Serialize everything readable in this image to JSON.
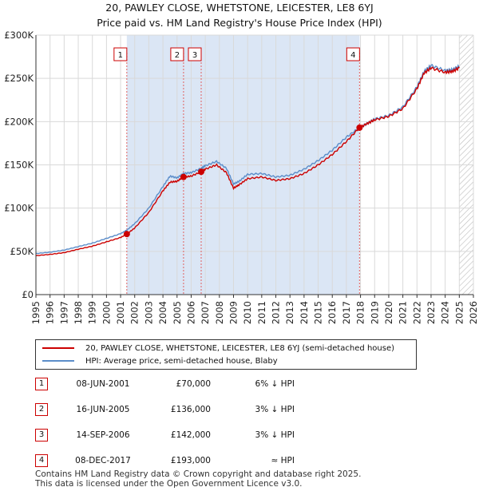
{
  "header": {
    "title_line1": "20, PAWLEY CLOSE, WHETSTONE, LEICESTER, LE8 6YJ",
    "title_line2": "Price paid vs. HM Land Registry's House Price Index (HPI)"
  },
  "colors": {
    "price_line": "#cc0000",
    "hpi_line": "#5b8dc9",
    "shade": "#dbe6f5",
    "marker_box": "#cc0000"
  },
  "chart_data": {
    "type": "line",
    "title": "Price paid vs. HM Land Registry's House Price Index (HPI)",
    "xlabel": "",
    "ylabel": "",
    "xlim": [
      1995,
      2026
    ],
    "ylim": [
      0,
      300000
    ],
    "y_ticks": [
      {
        "value": 0,
        "label": "£0"
      },
      {
        "value": 50000,
        "label": "£50K"
      },
      {
        "value": 100000,
        "label": "£100K"
      },
      {
        "value": 150000,
        "label": "£150K"
      },
      {
        "value": 200000,
        "label": "£200K"
      },
      {
        "value": 250000,
        "label": "£250K"
      },
      {
        "value": 300000,
        "label": "£300K"
      }
    ],
    "x_ticks": [
      "1995",
      "1996",
      "1997",
      "1998",
      "1999",
      "2000",
      "2001",
      "2002",
      "2003",
      "2004",
      "2005",
      "2006",
      "2007",
      "2008",
      "2009",
      "2010",
      "2011",
      "2012",
      "2013",
      "2014",
      "2015",
      "2016",
      "2017",
      "2018",
      "2019",
      "2020",
      "2021",
      "2022",
      "2023",
      "2024",
      "2025",
      "2026"
    ],
    "grid": true,
    "shaded_ranges": [
      [
        2001.44,
        2017.93
      ]
    ],
    "hatched_from": 2025.0,
    "series": [
      {
        "name": "20, PAWLEY CLOSE, WHETSTONE, LEICESTER, LE8 6YJ (semi-detached house)",
        "x": [
          1995.0,
          1996.0,
          1997.0,
          1998.0,
          1999.0,
          2000.0,
          2001.0,
          2001.44,
          2002.0,
          2003.0,
          2004.0,
          2004.5,
          2005.0,
          2005.46,
          2006.0,
          2006.71,
          2007.0,
          2007.8,
          2008.5,
          2009.0,
          2009.4,
          2010.0,
          2011.0,
          2012.0,
          2013.0,
          2014.0,
          2015.0,
          2016.0,
          2017.0,
          2017.93,
          2018.5,
          2019.0,
          2020.0,
          2021.0,
          2022.0,
          2022.5,
          2023.0,
          2024.0,
          2024.5,
          2025.0
        ],
        "values": [
          45000,
          46500,
          48500,
          52500,
          56000,
          61000,
          66000,
          70000,
          77000,
          95000,
          120000,
          130000,
          131000,
          136000,
          137000,
          142000,
          145000,
          150000,
          141000,
          123000,
          127000,
          134000,
          136000,
          132000,
          134000,
          140000,
          150000,
          162000,
          177000,
          193000,
          198000,
          202000,
          206000,
          215000,
          238000,
          256000,
          262000,
          257000,
          258000,
          262000
        ]
      },
      {
        "name": "HPI: Average price, semi-detached house, Blaby",
        "x": [
          1995.0,
          1996.0,
          1997.0,
          1998.0,
          1999.0,
          2000.0,
          2001.0,
          2001.44,
          2002.0,
          2003.0,
          2004.0,
          2004.5,
          2005.0,
          2005.46,
          2006.0,
          2006.71,
          2007.0,
          2007.8,
          2008.5,
          2009.0,
          2009.4,
          2010.0,
          2011.0,
          2012.0,
          2013.0,
          2014.0,
          2015.0,
          2016.0,
          2017.0,
          2017.93,
          2018.5,
          2019.0,
          2020.0,
          2021.0,
          2022.0,
          2022.5,
          2023.0,
          2024.0,
          2024.5,
          2025.0
        ],
        "values": [
          47500,
          49000,
          51500,
          55500,
          59500,
          65000,
          70500,
          74500,
          82000,
          100000,
          125000,
          137000,
          135000,
          140000,
          141000,
          146000,
          149000,
          154000,
          146000,
          128000,
          131000,
          139000,
          140000,
          136000,
          138000,
          145000,
          155000,
          167000,
          182000,
          193000,
          198000,
          203000,
          207000,
          217000,
          240000,
          258000,
          265000,
          259000,
          260000,
          264000
        ]
      }
    ],
    "sales": [
      {
        "id": "1",
        "x": 2001.44,
        "value": 70000
      },
      {
        "id": "2",
        "x": 2005.46,
        "value": 136000
      },
      {
        "id": "3",
        "x": 2006.71,
        "value": 142000
      },
      {
        "id": "4",
        "x": 2017.93,
        "value": 193000
      }
    ]
  },
  "legend": {
    "price_label": "20, PAWLEY CLOSE, WHETSTONE, LEICESTER, LE8 6YJ (semi-detached house)",
    "hpi_label": "HPI: Average price, semi-detached house, Blaby"
  },
  "transactions": [
    {
      "num": "1",
      "date": "08-JUN-2001",
      "price": "£70,000",
      "hpi": "6% ↓ HPI"
    },
    {
      "num": "2",
      "date": "16-JUN-2005",
      "price": "£136,000",
      "hpi": "3% ↓ HPI"
    },
    {
      "num": "3",
      "date": "14-SEP-2006",
      "price": "£142,000",
      "hpi": "3% ↓ HPI"
    },
    {
      "num": "4",
      "date": "08-DEC-2017",
      "price": "£193,000",
      "hpi": "≈ HPI"
    }
  ],
  "footer": {
    "line1": "Contains HM Land Registry data © Crown copyright and database right 2025.",
    "line2": "This data is licensed under the Open Government Licence v3.0."
  }
}
